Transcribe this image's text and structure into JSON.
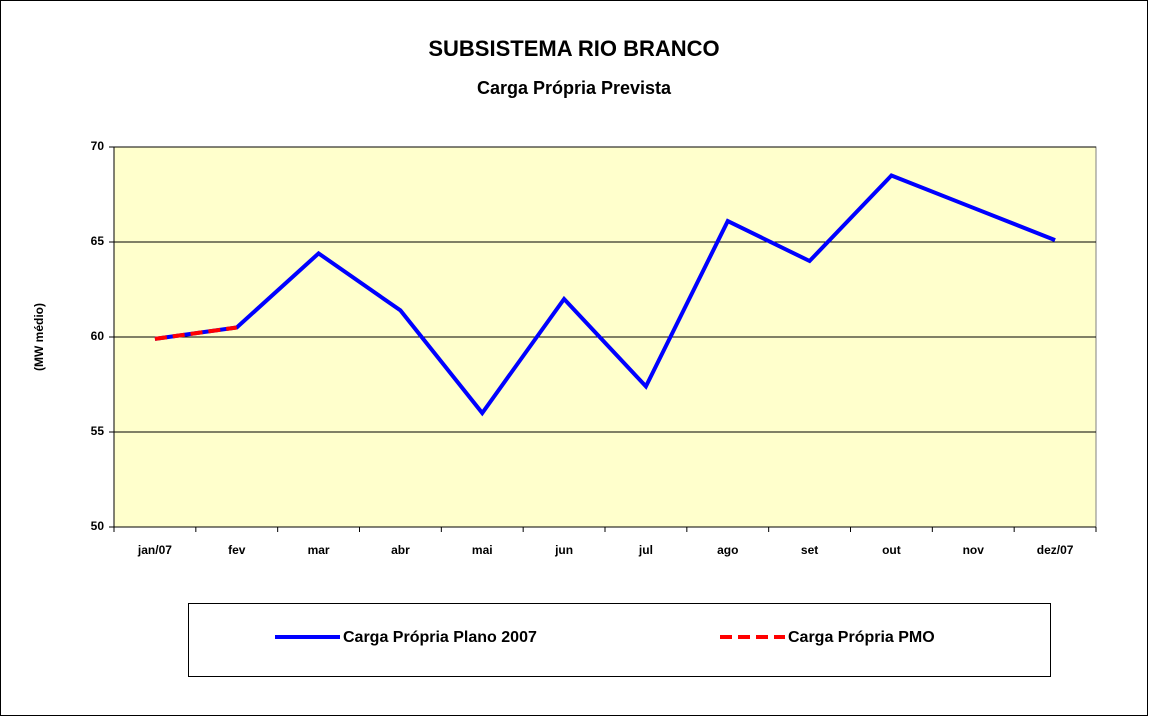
{
  "chart_data": {
    "type": "line",
    "title": "SUBSISTEMA RIO BRANCO",
    "subtitle": "Carga Própria Prevista",
    "y_label": "(MW médio)",
    "categories": [
      "jan/07",
      "fev",
      "mar",
      "abr",
      "mai",
      "jun",
      "jul",
      "ago",
      "set",
      "out",
      "nov",
      "dez/07"
    ],
    "series": [
      {
        "name": "Carga Própria Plano 2007",
        "color": "#0000ff",
        "values": [
          59.9,
          60.5,
          64.4,
          61.4,
          56.0,
          62.0,
          57.4,
          66.1,
          64.0,
          68.5,
          66.8,
          65.1
        ]
      },
      {
        "name": "Carga Própria PMO",
        "color": "#ff0000",
        "dashed": true,
        "values": [
          59.9,
          60.5,
          null,
          null,
          null,
          null,
          null,
          null,
          null,
          null,
          null,
          null
        ]
      }
    ],
    "ylim": [
      50,
      70
    ],
    "yticks": [
      50,
      55,
      60,
      65,
      70
    ],
    "grid": true,
    "legend": "bottom",
    "plot_background": "#ffffcc"
  }
}
